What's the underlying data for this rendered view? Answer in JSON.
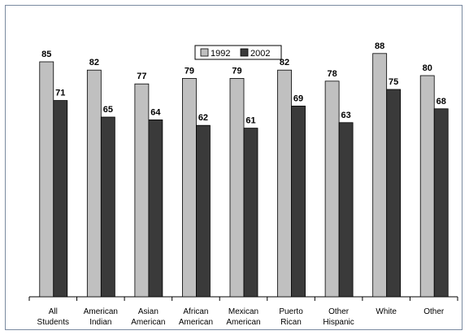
{
  "chart_data": {
    "type": "bar",
    "categories": [
      [
        "All",
        "Students"
      ],
      [
        "American",
        "Indian"
      ],
      [
        "Asian",
        "American"
      ],
      [
        "African",
        "American"
      ],
      [
        "Mexican",
        "American"
      ],
      [
        "Puerto",
        "Rican"
      ],
      [
        "Other",
        "Hispanic"
      ],
      [
        "White"
      ],
      [
        "Other"
      ]
    ],
    "series": [
      {
        "name": "1992",
        "color": "#c0c0c0",
        "values": [
          85,
          82,
          77,
          79,
          79,
          82,
          78,
          88,
          80
        ]
      },
      {
        "name": "2002",
        "color": "#3a3a3a",
        "values": [
          71,
          65,
          64,
          62,
          61,
          69,
          63,
          75,
          68
        ]
      }
    ],
    "ylim": [
      0,
      100
    ],
    "legend_position": "top-center",
    "grid": false
  }
}
